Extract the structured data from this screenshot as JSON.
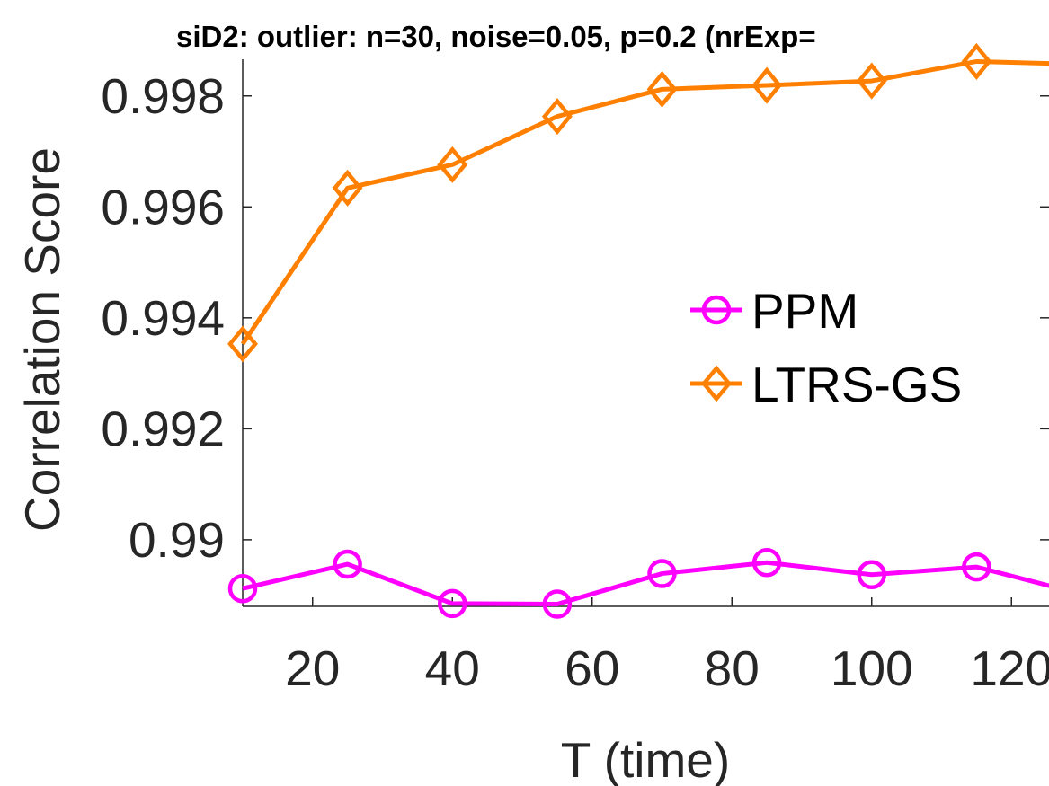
{
  "chart_data": {
    "type": "line",
    "title": "siD2: outlier: n=30, noise=0.05, p=0.2 (nrExp=",
    "xlabel": "T (time)",
    "ylabel": "Correlation Score",
    "xlim": [
      10,
      130
    ],
    "ylim": [
      0.9888,
      0.99866
    ],
    "xticks": [
      20,
      40,
      60,
      80,
      100,
      120
    ],
    "yticks": [
      0.99,
      0.992,
      0.994,
      0.996,
      0.998
    ],
    "ytick_labels": [
      "0.99",
      "0.992",
      "0.994",
      "0.996",
      "0.998"
    ],
    "x": [
      10,
      25,
      40,
      55,
      70,
      85,
      100,
      115,
      130
    ],
    "series": [
      {
        "name": "PPM",
        "color": "#ff00ff",
        "marker": "circle",
        "values": [
          0.98912,
          0.98956,
          0.98885,
          0.98884,
          0.98939,
          0.98959,
          0.98937,
          0.98951,
          0.98902
        ]
      },
      {
        "name": "LTRS-GS",
        "color": "#ff8000",
        "marker": "diamond",
        "values": [
          0.99353,
          0.99634,
          0.99676,
          0.99763,
          0.99812,
          0.99819,
          0.99827,
          0.99862,
          0.99857
        ]
      }
    ],
    "legend_position": "center-right",
    "grid": false
  }
}
